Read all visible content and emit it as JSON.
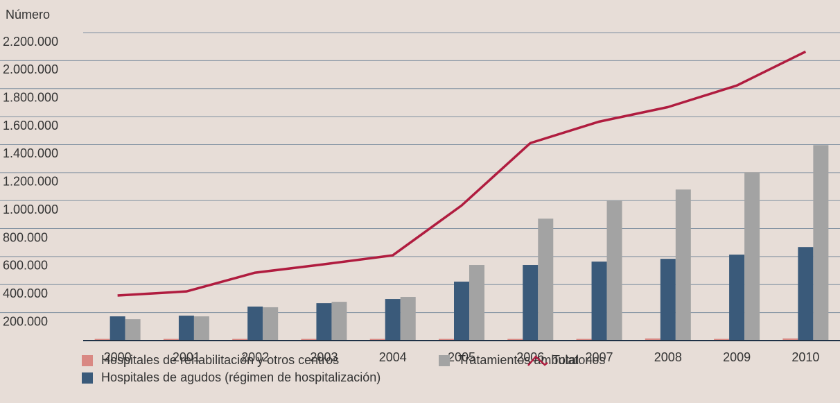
{
  "chart_data": {
    "type": "bar_line",
    "y_label": "Número",
    "categories": [
      "2000",
      "2001",
      "2002",
      "2003",
      "2004",
      "2005",
      "2006",
      "2007",
      "2008",
      "2009",
      "2010"
    ],
    "series": [
      {
        "name": "Hospitales de rehabilitación y otros centros",
        "color": "#d98883",
        "type": "bar",
        "values": [
          12000,
          12000,
          12000,
          12000,
          12000,
          12000,
          12000,
          12000,
          15000,
          12000,
          15000
        ]
      },
      {
        "name": "Hospitales de agudos (régimen de hospitalización)",
        "color": "#3a5a7a",
        "type": "bar",
        "values": [
          173000,
          178000,
          243000,
          267000,
          297000,
          421000,
          540000,
          564000,
          584000,
          614000,
          668000
        ]
      },
      {
        "name": "Tratamientos ambulatorios",
        "color": "#a3a3a3",
        "type": "bar",
        "values": [
          153000,
          173000,
          238000,
          277000,
          312000,
          540000,
          871000,
          1000000,
          1079000,
          1203000,
          1396000
        ]
      },
      {
        "name": "Total",
        "color": "#b01c3f",
        "type": "line",
        "values": [
          322000,
          351000,
          485000,
          545000,
          609000,
          965000,
          1411000,
          1564000,
          1668000,
          1822000,
          2064000
        ]
      }
    ],
    "ylim": [
      0,
      2200000
    ],
    "yticks": [
      {
        "value": 200000,
        "label": "200.000"
      },
      {
        "value": 400000,
        "label": "400.000"
      },
      {
        "value": 600000,
        "label": "600.000"
      },
      {
        "value": 800000,
        "label": "800.000"
      },
      {
        "value": 1000000,
        "label": "1.000.000"
      },
      {
        "value": 1200000,
        "label": "1.200.000"
      },
      {
        "value": 1400000,
        "label": "1.400.000"
      },
      {
        "value": 1600000,
        "label": "1.600.000"
      },
      {
        "value": 1800000,
        "label": "1.800.000"
      },
      {
        "value": 2000000,
        "label": "2.000.000"
      },
      {
        "value": 2200000,
        "label": "2.200.000"
      }
    ],
    "grid": true
  }
}
